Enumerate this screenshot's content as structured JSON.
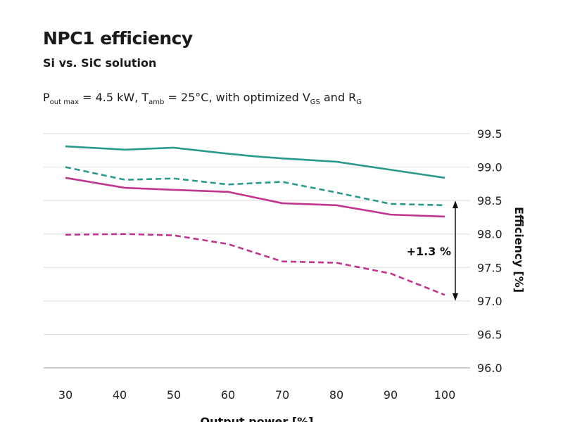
{
  "header": {
    "title": "NPC1 efficiency",
    "subtitle": "Si vs. SiC solution",
    "conditions": {
      "p": "P",
      "p_sub": "out max",
      "p_val": " = 4.5 kW, T",
      "t_sub": "amb",
      "t_val": " = 25°C, with optimized V",
      "v_sub": "GS",
      "and": " and R",
      "r_sub": "G"
    }
  },
  "chart_data": {
    "type": "line",
    "title": "NPC1 efficiency",
    "subtitle": "Si vs. SiC solution",
    "xlabel": "Output power [%]",
    "ylabel": "Efficiency [%]",
    "xlim": [
      30,
      100
    ],
    "ylim": [
      96.0,
      99.5
    ],
    "xticks": [
      "30",
      "40",
      "50",
      "60",
      "70",
      "80",
      "90",
      "100"
    ],
    "yticks": [
      "96.0",
      "96.5",
      "97.0",
      "97.5",
      "98.0",
      "98.5",
      "99.0",
      "99.5"
    ],
    "grid": "horizontal",
    "y_axis_side": "right",
    "series": [
      {
        "color": "#2a9a8c",
        "style": "solid",
        "x": [
          30,
          41,
          50,
          60,
          65,
          70,
          80,
          90,
          100
        ],
        "y": [
          99.31,
          99.26,
          99.29,
          99.2,
          99.16,
          99.13,
          99.08,
          98.96,
          98.84
        ]
      },
      {
        "color": "#2a9a8c",
        "style": "dashed",
        "x": [
          30,
          41,
          50,
          60,
          70,
          80,
          90,
          100
        ],
        "y": [
          99.0,
          98.81,
          98.83,
          98.74,
          98.78,
          98.62,
          98.45,
          98.43
        ]
      },
      {
        "color": "#c0358f",
        "style": "solid",
        "x": [
          30,
          41,
          50,
          60,
          70,
          80,
          90,
          100
        ],
        "y": [
          98.84,
          98.69,
          98.66,
          98.63,
          98.46,
          98.43,
          98.29,
          98.26
        ]
      },
      {
        "color": "#c0358f",
        "style": "dashed",
        "x": [
          30,
          41,
          50,
          60,
          70,
          80,
          90,
          100
        ],
        "y": [
          97.99,
          98.0,
          97.98,
          97.85,
          97.59,
          97.57,
          97.41,
          97.09
        ]
      }
    ],
    "annotation": {
      "text": "+1.3 %",
      "from": 98.5,
      "to": 97.0
    }
  }
}
